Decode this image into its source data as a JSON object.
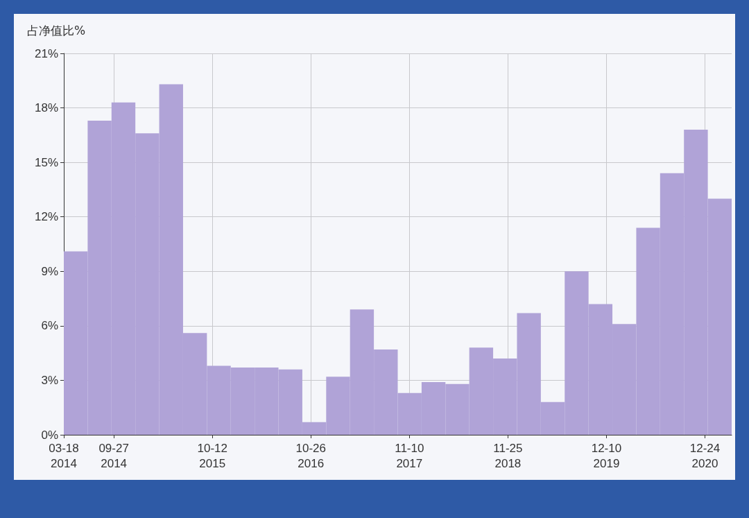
{
  "chart_data": {
    "type": "histogram",
    "ylabel": "占净值比%",
    "bins": [
      "2014-03-18",
      "2014-06-18",
      "2014-09-18",
      "2014-12-19",
      "2015-03-21",
      "2015-06-21",
      "2015-09-21",
      "2015-12-22",
      "2016-03-23",
      "2016-06-23",
      "2016-09-23",
      "2016-12-24",
      "2017-03-26",
      "2017-06-26",
      "2017-09-26",
      "2017-12-27",
      "2018-03-29",
      "2018-06-29",
      "2018-09-29",
      "2018-12-30",
      "2019-04-01",
      "2019-07-02",
      "2019-10-02",
      "2020-01-02",
      "2020-04-03",
      "2020-07-04",
      "2020-10-04",
      "2021-01-04",
      "2021-04-06"
    ],
    "values": [
      10.1,
      17.3,
      18.3,
      16.6,
      19.3,
      5.6,
      3.8,
      3.7,
      3.7,
      3.6,
      0.7,
      3.2,
      6.9,
      4.7,
      2.3,
      2.9,
      2.8,
      4.8,
      4.2,
      6.7,
      1.8,
      9.0,
      7.2,
      6.1,
      11.4,
      14.4,
      16.8,
      13.0
    ],
    "color": "#b0a3d7",
    "xlim": [
      "2014-03-18",
      "2021-04-06"
    ],
    "xticks": [
      {
        "value": "2014-03-18",
        "label": "03-18\n2014"
      },
      {
        "value": "2014-09-27",
        "label": "09-27\n2014"
      },
      {
        "value": "2015-10-12",
        "label": "10-12\n2015"
      },
      {
        "value": "2016-10-26",
        "label": "10-26\n2016"
      },
      {
        "value": "2017-11-10",
        "label": "11-10\n2017"
      },
      {
        "value": "2018-11-25",
        "label": "11-25\n2018"
      },
      {
        "value": "2019-12-10",
        "label": "12-10\n2019"
      },
      {
        "value": "2020-12-24",
        "label": "12-24\n2020"
      }
    ],
    "ylim": [
      0,
      21
    ],
    "yticks": [
      {
        "value": 0,
        "label": "0%"
      },
      {
        "value": 3,
        "label": "3%"
      },
      {
        "value": 6,
        "label": "6%"
      },
      {
        "value": 9,
        "label": "9%"
      },
      {
        "value": 12,
        "label": "12%"
      },
      {
        "value": 15,
        "label": "15%"
      },
      {
        "value": 18,
        "label": "18%"
      },
      {
        "value": 21,
        "label": "21%"
      }
    ],
    "grid": true
  }
}
